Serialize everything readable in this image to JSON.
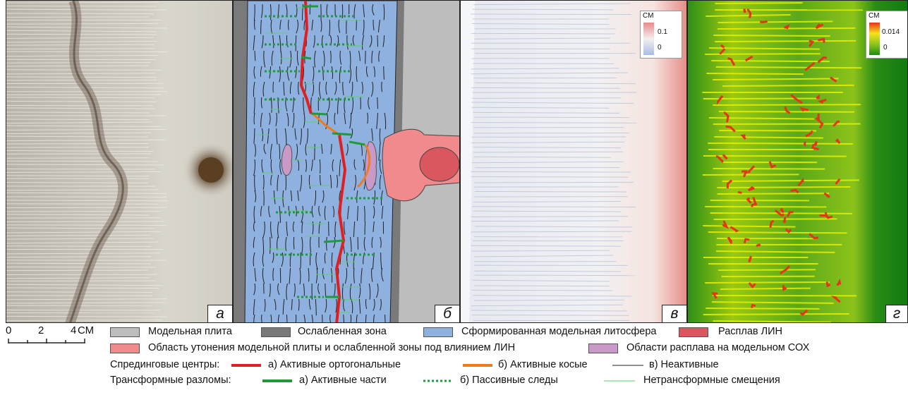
{
  "panels": {
    "a": {
      "label": "а"
    },
    "b": {
      "label": "б"
    },
    "v": {
      "label": "в",
      "colorbar": {
        "unit": "СМ",
        "max": "0.1",
        "min": "0"
      }
    },
    "g": {
      "label": "г",
      "colorbar": {
        "unit": "СМ",
        "max": "0.014",
        "min": "0"
      }
    }
  },
  "scale_bar": {
    "ticks": [
      "0",
      "2",
      "4"
    ],
    "unit": "СМ"
  },
  "legend": {
    "fills": [
      {
        "label": "Модельная плита",
        "color": "#bdbdbd"
      },
      {
        "label": "Ослабленная зона",
        "color": "#7a7a7a"
      },
      {
        "label": "Сформированная модельная литосфера",
        "color": "#8fb1e0"
      },
      {
        "label": "Расплав ЛИН",
        "color": "#d9575f"
      },
      {
        "label": "Область утонения модельной плиты и ослабленной зоны под влиянием ЛИН",
        "color": "#f08a8c"
      },
      {
        "label": "Области расплава на модельном СОХ",
        "color": "#c99ac8"
      }
    ],
    "spreading": {
      "title": "Спрединговые центры:",
      "items": [
        {
          "label": "а) Активные ортогональные",
          "color": "#e02020"
        },
        {
          "label": "б) Активные косые",
          "color": "#f07a20"
        },
        {
          "label": "в) Неактивные",
          "color": "#222222"
        }
      ]
    },
    "transform": {
      "title": "Трансформные разломы:",
      "items": [
        {
          "label": "а) Активные части",
          "color": "#1f9a3a"
        },
        {
          "label": "б) Пассивные следы",
          "color": "#1f9a3a"
        },
        {
          "label": "Нетрансформные смещения",
          "color": "#5ed06a"
        }
      ]
    }
  }
}
